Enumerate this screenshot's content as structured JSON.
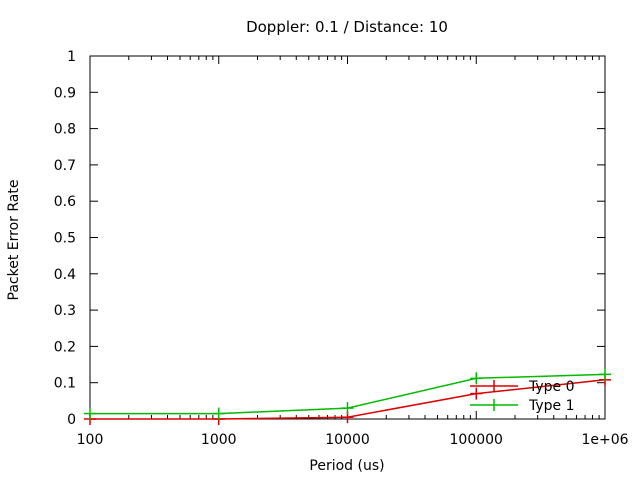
{
  "chart_data": {
    "type": "line",
    "title": "Doppler: 0.1 / Distance: 10",
    "xlabel": "Period (us)",
    "ylabel": "Packet Error Rate",
    "x_scale": "log",
    "xlim": [
      100,
      1000000
    ],
    "ylim": [
      0,
      1
    ],
    "x_ticks": [
      100,
      1000,
      10000,
      100000,
      1000000
    ],
    "x_tick_labels": [
      "100",
      "1000",
      "10000",
      "100000",
      "1e+06"
    ],
    "y_ticks": [
      0,
      0.1,
      0.2,
      0.3,
      0.4,
      0.5,
      0.6,
      0.7,
      0.8,
      0.9,
      1
    ],
    "y_tick_labels": [
      "0",
      "0.1",
      "0.2",
      "0.3",
      "0.4",
      "0.5",
      "0.6",
      "0.7",
      "0.8",
      "0.9",
      "1"
    ],
    "grid": false,
    "legend_position": "bottom-right",
    "x": [
      100,
      1000,
      10000,
      100000,
      1000000
    ],
    "series": [
      {
        "name": "Type 0",
        "color": "#dd0000",
        "values": [
          0,
          0,
          0.005,
          0.07,
          0.108
        ]
      },
      {
        "name": "Type 1",
        "color": "#00bb00",
        "values": [
          0.015,
          0.015,
          0.03,
          0.112,
          0.123
        ]
      }
    ]
  }
}
